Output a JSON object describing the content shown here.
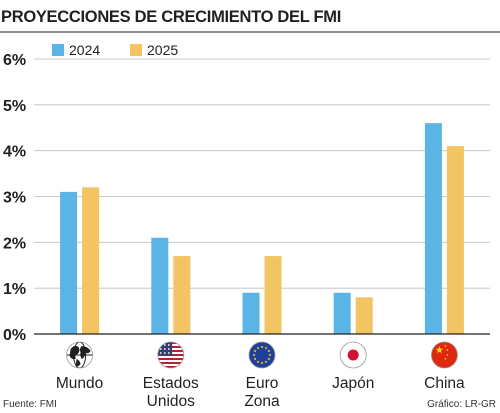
{
  "chart_data": {
    "type": "bar",
    "title": "PROYECCIONES DE CRECIMIENTO DEL FMI",
    "categories": [
      "Mundo",
      "Estados Unidos",
      "Euro Zona",
      "Japón",
      "China"
    ],
    "category_lines": [
      [
        "Mundo"
      ],
      [
        "Estados",
        "Unidos"
      ],
      [
        "Euro",
        "Zona"
      ],
      [
        "Japón"
      ],
      [
        "China"
      ]
    ],
    "category_icons": [
      "globe-icon",
      "usa-flag-icon",
      "eu-flag-icon",
      "japan-flag-icon",
      "china-flag-icon"
    ],
    "series": [
      {
        "name": "2024",
        "values": [
          3.1,
          2.1,
          0.9,
          0.9,
          4.6
        ],
        "color": "#5ab4e5"
      },
      {
        "name": "2025",
        "values": [
          3.2,
          1.7,
          1.7,
          0.8,
          4.1
        ],
        "color": "#f2c462"
      }
    ],
    "yticks": [
      0,
      1,
      2,
      3,
      4,
      5,
      6
    ],
    "ytick_labels": [
      "0%",
      "1%",
      "2%",
      "3%",
      "4%",
      "5%",
      "6%"
    ],
    "ylim": [
      0,
      6
    ],
    "xlabel": "",
    "ylabel": "",
    "grid": true,
    "legend": "top-left"
  },
  "footer": {
    "source": "Fuente: FMI",
    "credit": "Gráfico: LR-GR"
  }
}
